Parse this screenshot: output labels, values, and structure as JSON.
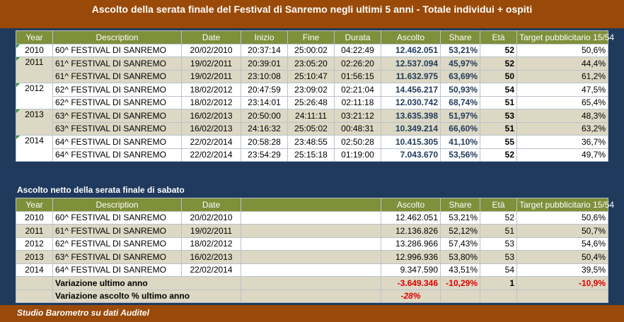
{
  "title": "Ascolto della serata finale del Festival di Sanremo negli ultimi 5 anni - Totale individui + ospiti",
  "table1": {
    "headers": [
      "Year",
      "Description",
      "Date",
      "Inizio",
      "Fine",
      "Durata",
      "Ascolto",
      "Share",
      "Età",
      "Target pubblicitario 15/54"
    ],
    "rows": [
      {
        "year": "2010",
        "desc": "60^ FESTIVAL DI SANREMO",
        "date": "20/02/2010",
        "inizio": "20:37:14",
        "fine": "25:00:02",
        "durata": "04:22:49",
        "ascolto": "12.462.051",
        "share": "53,21%",
        "eta": "52",
        "target": "50,6%"
      },
      {
        "year": "2011",
        "desc": "61^ FESTIVAL DI SANREMO",
        "date": "19/02/2011",
        "inizio": "20:39:01",
        "fine": "23:05:20",
        "durata": "02:26:20",
        "ascolto": "12.537.094",
        "share": "45,97%",
        "eta": "52",
        "target": "44,4%"
      },
      {
        "year": "",
        "desc": "61^ FESTIVAL DI SANREMO",
        "date": "19/02/2011",
        "inizio": "23:10:08",
        "fine": "25:10:47",
        "durata": "01:56:15",
        "ascolto": "11.632.975",
        "share": "63,69%",
        "eta": "50",
        "target": "61,2%"
      },
      {
        "year": "2012",
        "desc": "62^ FESTIVAL DI SANREMO",
        "date": "18/02/2012",
        "inizio": "20:47:59",
        "fine": "23:09:02",
        "durata": "02:21:04",
        "ascolto": "14.456.217",
        "share": "50,93%",
        "eta": "54",
        "target": "47,5%"
      },
      {
        "year": "",
        "desc": "62^ FESTIVAL DI SANREMO",
        "date": "18/02/2012",
        "inizio": "23:14:01",
        "fine": "25:26:48",
        "durata": "02:11:18",
        "ascolto": "12.030.742",
        "share": "68,74%",
        "eta": "51",
        "target": "65,4%"
      },
      {
        "year": "2013",
        "desc": "63^ FESTIVAL DI SANREMO",
        "date": "16/02/2013",
        "inizio": "20:50:00",
        "fine": "24:11:11",
        "durata": "03:21:12",
        "ascolto": "13.635.398",
        "share": "51,97%",
        "eta": "53",
        "target": "48,3%"
      },
      {
        "year": "",
        "desc": "63^ FESTIVAL DI SANREMO",
        "date": "16/02/2013",
        "inizio": "24:16:32",
        "fine": "25:05:02",
        "durata": "00:48:31",
        "ascolto": "10.349.214",
        "share": "66,60%",
        "eta": "51",
        "target": "63,2%"
      },
      {
        "year": "2014",
        "desc": "64^ FESTIVAL DI SANREMO",
        "date": "22/02/2014",
        "inizio": "20:58:28",
        "fine": "23:48:55",
        "durata": "02:50:28",
        "ascolto": "10.415.305",
        "share": "41,10%",
        "eta": "55",
        "target": "36,7%"
      },
      {
        "year": "",
        "desc": "64^ FESTIVAL DI SANREMO",
        "date": "22/02/2014",
        "inizio": "23:54:29",
        "fine": "25:15:18",
        "durata": "01:19:00",
        "ascolto": "7.043.670",
        "share": "53,56%",
        "eta": "52",
        "target": "49,7%"
      }
    ]
  },
  "subtitle": "Ascolto netto della serata finale di sabato",
  "table2": {
    "headers": [
      "Year",
      "Description",
      "Date",
      "Ascolto",
      "Share",
      "Età",
      "Target pubblicitario 15/54"
    ],
    "rows": [
      {
        "year": "2010",
        "desc": "60^ FESTIVAL DI SANREMO",
        "date": "20/02/2010",
        "ascolto": "12.462.051",
        "share": "53,21%",
        "eta": "52",
        "target": "50,6%"
      },
      {
        "year": "2011",
        "desc": "61^ FESTIVAL DI SANREMO",
        "date": "19/02/2011",
        "ascolto": "12.136.826",
        "share": "52,12%",
        "eta": "51",
        "target": "50,7%"
      },
      {
        "year": "2012",
        "desc": "62^ FESTIVAL DI SANREMO",
        "date": "18/02/2012",
        "ascolto": "13.286.966",
        "share": "57,43%",
        "eta": "53",
        "target": "54,6%"
      },
      {
        "year": "2013",
        "desc": "63^ FESTIVAL DI SANREMO",
        "date": "16/02/2013",
        "ascolto": "12.996.936",
        "share": "53,80%",
        "eta": "53",
        "target": "50,4%"
      },
      {
        "year": "2014",
        "desc": "64^ FESTIVAL DI SANREMO",
        "date": "22/02/2014",
        "ascolto": "9.347.590",
        "share": "43,51%",
        "eta": "54",
        "target": "39,5%"
      }
    ],
    "variazione": {
      "label": "Variazione ultimo anno",
      "ascolto": "-3.649.346",
      "share": "-10,29%",
      "eta": "1",
      "target": "-10,9%"
    },
    "variazione_pct": {
      "label": "Variazione ascolto % ultimo anno",
      "ascolto": "-28%"
    }
  },
  "footer": "Studio Barometro su dati Auditel",
  "colors": {
    "header_brown": "#9a4a08",
    "panel_navy": "#1f3a5c",
    "header_olive": "#7f8f3a",
    "band_gray": "#dcd8c4",
    "negative_red": "#e00000"
  }
}
